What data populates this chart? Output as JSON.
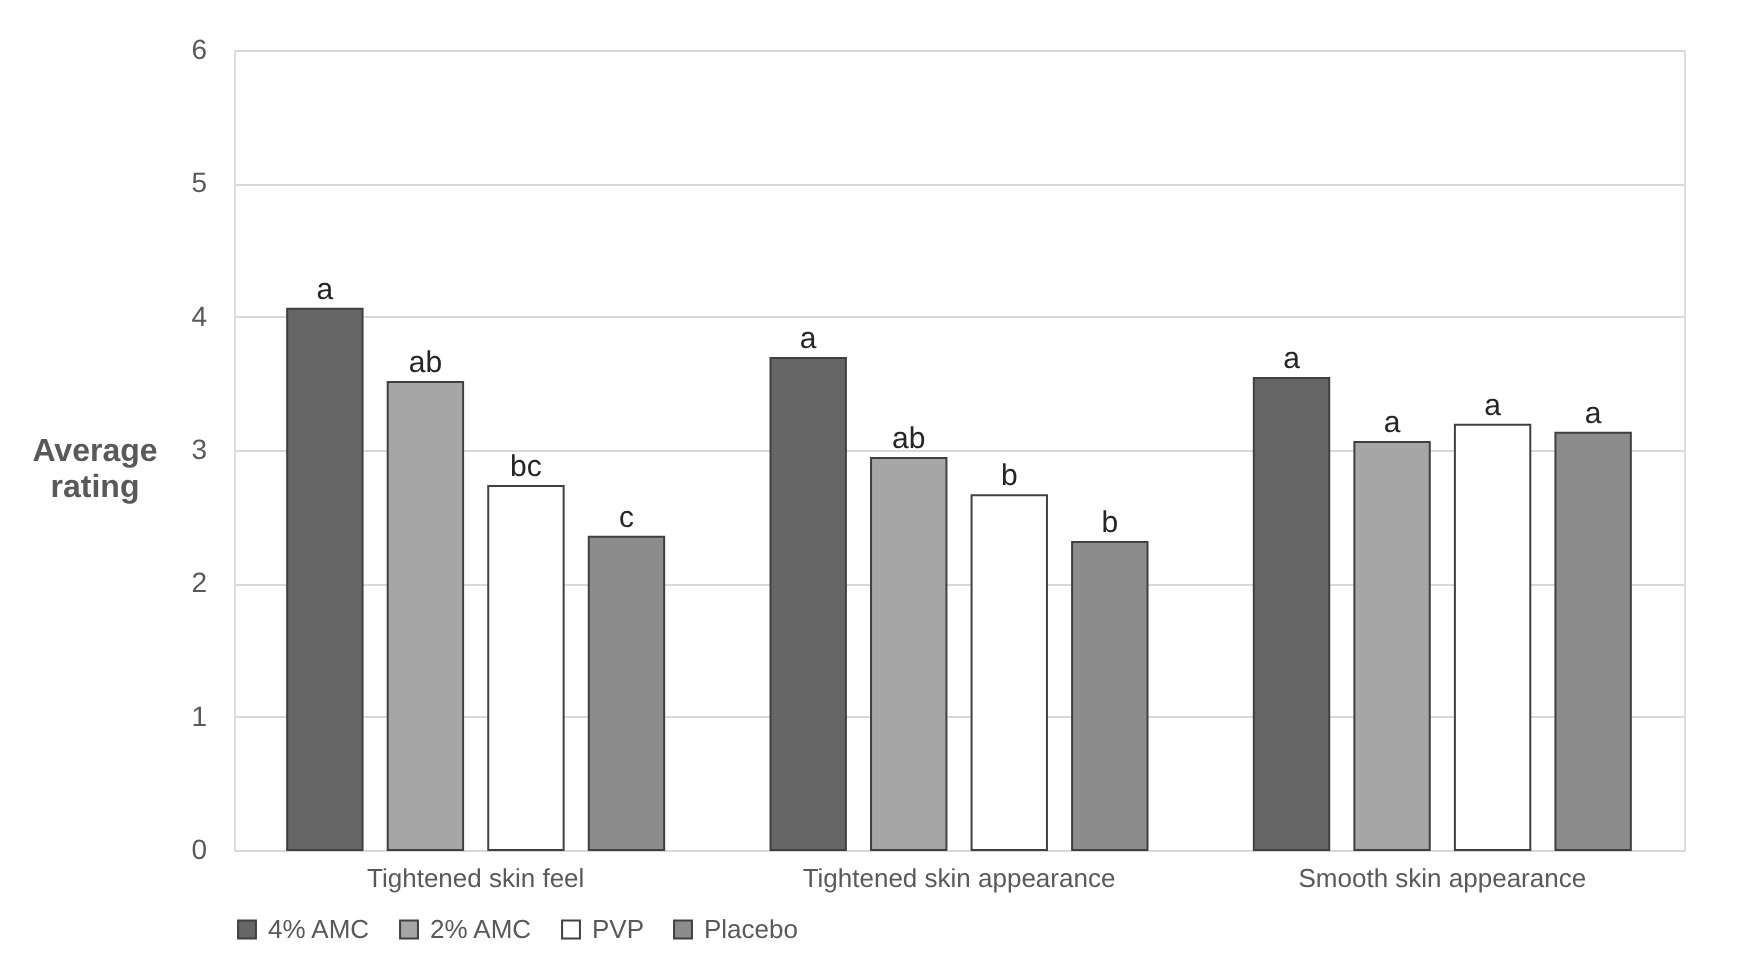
{
  "chart_data": {
    "type": "bar",
    "ylabel": "Average rating",
    "categories": [
      "Tightened skin feel",
      "Tightened skin appearance",
      "Smooth skin appearance"
    ],
    "series": [
      {
        "name": "4% AMC",
        "color": "#666666",
        "values": [
          4.06,
          3.69,
          3.54
        ],
        "value_labels": [
          "a",
          "a",
          "a"
        ]
      },
      {
        "name": "2% AMC",
        "color": "#a6a6a6",
        "values": [
          3.51,
          2.94,
          3.06
        ],
        "value_labels": [
          "ab",
          "ab",
          "a"
        ]
      },
      {
        "name": "PVP",
        "color": "#ffffff",
        "values": [
          2.73,
          2.66,
          3.19
        ],
        "value_labels": [
          "bc",
          "b",
          "a"
        ]
      },
      {
        "name": "Placebo",
        "color": "#8c8c8c",
        "values": [
          2.35,
          2.31,
          3.13
        ],
        "value_labels": [
          "c",
          "b",
          "a"
        ]
      }
    ],
    "ylim": [
      0,
      6
    ],
    "yticks": [
      0,
      1,
      2,
      3,
      4,
      5,
      6
    ],
    "grid": "y",
    "legend": "bottom"
  }
}
